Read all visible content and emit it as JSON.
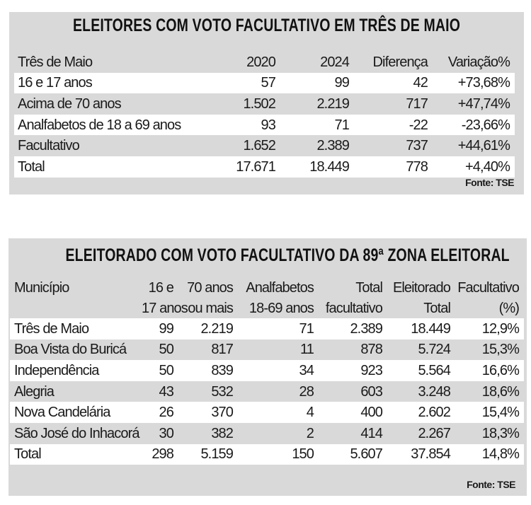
{
  "table1": {
    "title": "ELEITORES COM VOTO FACULTATIVO EM TRÊS DE MAIO",
    "headers": [
      "Três de Maio",
      "2020",
      "2024",
      "Diferença",
      "Variação%"
    ],
    "rows": [
      [
        "16 e 17 anos",
        "57",
        "99",
        "42",
        "+73,68%"
      ],
      [
        "Acima de 70 anos",
        "1.502",
        "2.219",
        "717",
        "+47,74%"
      ],
      [
        "Analfabetos de 18 a 69 anos",
        "93",
        "71",
        "-22",
        "-23,66%"
      ],
      [
        "Facultativo",
        "1.652",
        "2.389",
        "737",
        "+44,61%"
      ],
      [
        "Total",
        "17.671",
        "18.449",
        "778",
        "+4,40%"
      ]
    ],
    "source": "Fonte: TSE"
  },
  "table2": {
    "title": "ELEITORADO COM VOTO FACULTATIVO DA 89ª ZONA ELEITORAL",
    "headers_line1": [
      "Município",
      "16 e",
      "70 anos",
      "Analfabetos",
      "Total",
      "Eleitorado",
      "Facultativo"
    ],
    "headers_line2": [
      "",
      "17 anos",
      "ou mais",
      "18-69 anos",
      "facultativo",
      "Total",
      "(%)"
    ],
    "rows": [
      [
        "Três de Maio",
        "99",
        "2.219",
        "71",
        "2.389",
        "18.449",
        "12,9%"
      ],
      [
        "Boa Vista do Buricá",
        "50",
        "817",
        "11",
        "878",
        "5.724",
        "15,3%"
      ],
      [
        "Independência",
        "50",
        "839",
        "34",
        "923",
        "5.564",
        "16,6%"
      ],
      [
        "Alegria",
        "43",
        "532",
        "28",
        "603",
        "3.248",
        "18,6%"
      ],
      [
        "Nova Candelária",
        "26",
        "370",
        "4",
        "400",
        "2.602",
        "15,4%"
      ],
      [
        "São José do Inhacorá",
        "30",
        "382",
        "2",
        "414",
        "2.267",
        "18,3%"
      ],
      [
        "Total",
        "298",
        "5.159",
        "150",
        "5.607",
        "37.854",
        "14,8%"
      ]
    ],
    "source": "Fonte: TSE"
  }
}
